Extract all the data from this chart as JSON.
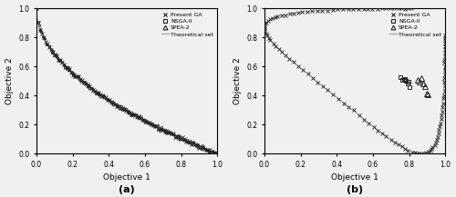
{
  "title_a": "(a)",
  "title_b": "(b)",
  "xlabel": "Objective 1",
  "ylabel": "Objective 2",
  "xlim": [
    0,
    1
  ],
  "ylim": [
    0,
    1
  ],
  "xticks": [
    0,
    0.2,
    0.4,
    0.6,
    0.8,
    1.0
  ],
  "yticks": [
    0,
    0.2,
    0.4,
    0.6,
    0.8,
    1.0
  ],
  "legend_labels": [
    "Present GA",
    "NSGA-II",
    "SPEA-2",
    "Theoretical set"
  ],
  "color_markers": "#222222",
  "color_theory": "#aaaaaa",
  "background": "#f0f0f0",
  "plot_bg": "#f0f0f0",
  "fonseca_nsga_x": [
    0.75,
    0.77,
    0.79,
    0.775,
    0.795,
    0.76,
    0.78,
    0.8
  ],
  "fonseca_nsga_y": [
    0.525,
    0.505,
    0.485,
    0.515,
    0.495,
    0.51,
    0.5,
    0.46
  ],
  "fonseca_spea_x": [
    0.845,
    0.855,
    0.875,
    0.895,
    0.865,
    0.885,
    0.9
  ],
  "fonseca_spea_y": [
    0.505,
    0.495,
    0.48,
    0.415,
    0.52,
    0.465,
    0.41
  ]
}
